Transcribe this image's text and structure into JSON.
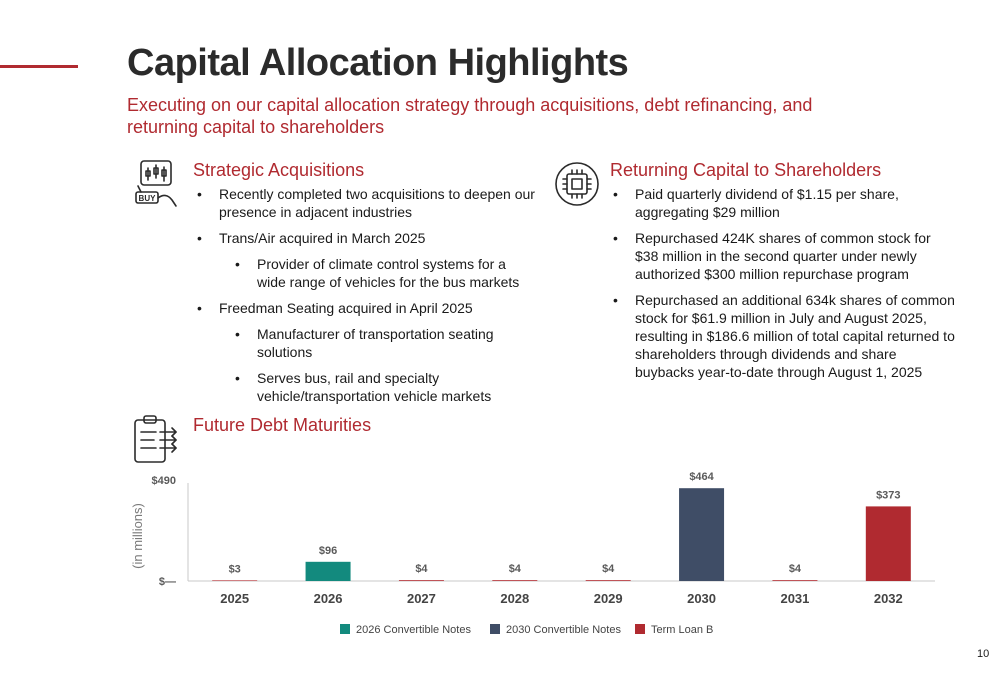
{
  "title": "Capital Allocation Highlights",
  "subtitle": "Executing on our capital allocation strategy through acquisitions, debt refinancing, and returning capital to shareholders",
  "sections": {
    "acquisitions": {
      "heading": "Strategic Acquisitions",
      "icon": "buy-chart-icon",
      "icon_text": "BUY",
      "bullets": [
        {
          "text": "Recently completed two acquisitions to deepen our presence in adjacent industries",
          "level": 1
        },
        {
          "text": "Trans/Air acquired in March 2025",
          "level": 1
        },
        {
          "text": "Provider of climate control systems for a wide range of vehicles for the bus markets",
          "level": 2
        },
        {
          "text": "Freedman Seating acquired in April 2025",
          "level": 1
        },
        {
          "text": "Manufacturer of transportation seating solutions",
          "level": 2
        },
        {
          "text": "Serves bus, rail and specialty vehicle/transportation vehicle markets",
          "level": 2
        }
      ]
    },
    "returning_capital": {
      "heading": "Returning Capital to Shareholders",
      "icon": "chip-icon",
      "bullets": [
        {
          "text": "Paid quarterly dividend of $1.15 per share, aggregating $29 million",
          "level": 1
        },
        {
          "text": "Repurchased 424K shares of common stock for $38 million in the second quarter under newly authorized $300 million repurchase program",
          "level": 1
        },
        {
          "text": "Repurchased an additional 634k shares of common stock for $61.9 million in July and August 2025, resulting in $186.6 million of total capital returned to shareholders through dividends and share buybacks year-to-date through August 1, 2025",
          "level": 1
        }
      ]
    },
    "debt": {
      "heading": "Future Debt Maturities",
      "icon": "clipboard-arrows-icon"
    }
  },
  "chart_data": {
    "type": "bar",
    "ylabel": "(in millions)",
    "ylim": [
      0,
      490
    ],
    "y_tick_labels": [
      "$—",
      "$490"
    ],
    "grid": false,
    "legend_position": "bottom",
    "categories": [
      "2025",
      "2026",
      "2027",
      "2028",
      "2029",
      "2030",
      "2031",
      "2032"
    ],
    "data_labels": [
      "$3",
      "$96",
      "$4",
      "$4",
      "$4",
      "$464",
      "$4",
      "$373"
    ],
    "series": [
      {
        "name": "2026 Convertible Notes",
        "color": "#138a7e",
        "values": [
          0,
          96,
          0,
          0,
          0,
          0,
          0,
          0
        ]
      },
      {
        "name": "2030 Convertible Notes",
        "color": "#3f4d66",
        "values": [
          0,
          0,
          0,
          0,
          0,
          464,
          0,
          0
        ]
      },
      {
        "name": "Term Loan B",
        "color": "#b02a30",
        "values": [
          3,
          0,
          4,
          4,
          4,
          0,
          4,
          373
        ]
      }
    ]
  },
  "page_number": "10"
}
